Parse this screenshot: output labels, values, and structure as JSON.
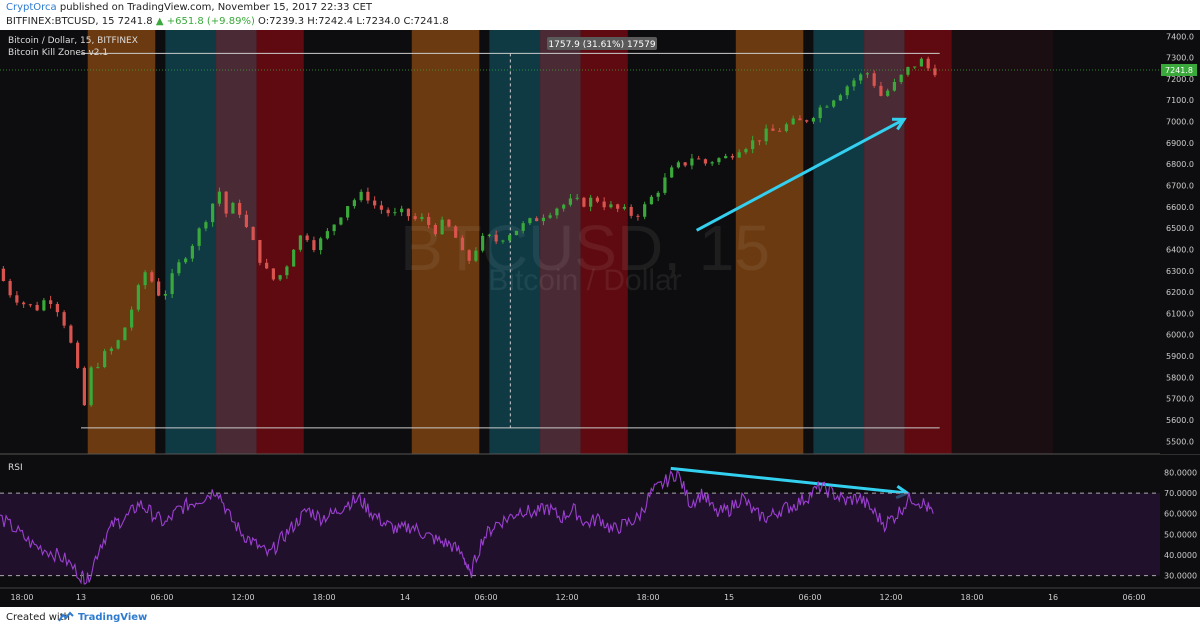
{
  "header": {
    "author": "CryptOrca",
    "published_text": "published on TradingView.com, November 15, 2017 22:33 CET",
    "symbol": "BITFINEX:BTCUSD, 15",
    "last": "7241.8",
    "change": "+651.8 (+9.89%)",
    "ohlc": "O:7239.3 H:7242.4 L:7234.0 C:7241.8"
  },
  "legend": {
    "title": "Bitcoin / Dollar, 15, BITFINEX",
    "indicator": "Bitcoin Kill Zones v2.1",
    "rsi_label": "RSI"
  },
  "watermark": {
    "line1": "BTCUSD, 15",
    "line2": "Bitcoin / Dollar"
  },
  "measure_label": "1757.9 (31.61%) 17579",
  "footer": {
    "created_with": "Created with",
    "brand": "TradingView"
  },
  "colors": {
    "background": "#0d0d0f",
    "up": "#3aa83a",
    "down": "#d9534f",
    "rsi": "#9b3fd0",
    "arrow": "#33d0f0",
    "price_tag": "#3aa83a",
    "zone_orange": "#6b3a10",
    "zone_teal": "#0f3a44",
    "zone_mauve": "#4a2a34",
    "zone_red": "#5e0a10"
  },
  "chart_data": [
    {
      "type": "candlestick",
      "title": "Bitcoin / Dollar, 15, BITFINEX",
      "xlabel": "",
      "ylabel": "",
      "x_tick_labels": [
        "18:00",
        "13",
        "06:00",
        "12:00",
        "18:00",
        "14",
        "06:00",
        "12:00",
        "18:00",
        "15",
        "06:00",
        "12:00",
        "18:00",
        "16",
        "06:00"
      ],
      "x_range_days": [
        -0.25,
        3.33
      ],
      "ylim": [
        5450,
        7420
      ],
      "y_ticks": [
        5500,
        5600,
        5700,
        5800,
        5900,
        6000,
        6100,
        6200,
        6300,
        6400,
        6500,
        6600,
        6700,
        6800,
        6900,
        7000,
        7100,
        7200,
        7300,
        7400
      ],
      "last_price": 7241.8,
      "grid": false,
      "zones": [
        {
          "start": 0.0208,
          "end": 0.2292,
          "kind": "orange"
        },
        {
          "start": 0.2604,
          "end": 0.4167,
          "kind": "teal"
        },
        {
          "start": 0.4167,
          "end": 0.5417,
          "kind": "mauve"
        },
        {
          "start": 0.5417,
          "end": 0.6875,
          "kind": "red"
        },
        {
          "start": 1.0208,
          "end": 1.2292,
          "kind": "orange"
        },
        {
          "start": 1.2604,
          "end": 1.4167,
          "kind": "teal"
        },
        {
          "start": 1.4167,
          "end": 1.5417,
          "kind": "mauve"
        },
        {
          "start": 1.5417,
          "end": 1.6875,
          "kind": "red"
        },
        {
          "start": 2.0208,
          "end": 2.2292,
          "kind": "orange"
        },
        {
          "start": 2.2604,
          "end": 2.4167,
          "kind": "teal"
        },
        {
          "start": 2.4167,
          "end": 2.5417,
          "kind": "mauve"
        },
        {
          "start": 2.5417,
          "end": 2.6875,
          "kind": "red"
        }
      ],
      "price_path": [
        [
          -0.25,
          6310
        ],
        [
          -0.21,
          6200
        ],
        [
          -0.17,
          6150
        ],
        [
          -0.13,
          6120
        ],
        [
          -0.09,
          6180
        ],
        [
          -0.05,
          6100
        ],
        [
          -0.01,
          5900
        ],
        [
          0.0,
          5820
        ],
        [
          0.01,
          5680
        ],
        [
          0.02,
          5660
        ],
        [
          0.04,
          5830
        ],
        [
          0.08,
          5900
        ],
        [
          0.12,
          5950
        ],
        [
          0.15,
          6050
        ],
        [
          0.18,
          6180
        ],
        [
          0.21,
          6300
        ],
        [
          0.23,
          6250
        ],
        [
          0.26,
          6170
        ],
        [
          0.29,
          6260
        ],
        [
          0.32,
          6350
        ],
        [
          0.35,
          6420
        ],
        [
          0.38,
          6500
        ],
        [
          0.41,
          6600
        ],
        [
          0.44,
          6680
        ],
        [
          0.46,
          6560
        ],
        [
          0.49,
          6620
        ],
        [
          0.52,
          6500
        ],
        [
          0.55,
          6400
        ],
        [
          0.58,
          6300
        ],
        [
          0.61,
          6250
        ],
        [
          0.64,
          6310
        ],
        [
          0.67,
          6430
        ],
        [
          0.7,
          6480
        ],
        [
          0.73,
          6420
        ],
        [
          0.76,
          6450
        ],
        [
          0.79,
          6520
        ],
        [
          0.83,
          6610
        ],
        [
          0.86,
          6640
        ],
        [
          0.89,
          6660
        ],
        [
          0.92,
          6600
        ],
        [
          0.95,
          6580
        ],
        [
          0.98,
          6560
        ],
        [
          1.01,
          6570
        ],
        [
          1.04,
          6540
        ],
        [
          1.07,
          6540
        ],
        [
          1.1,
          6490
        ],
        [
          1.13,
          6520
        ],
        [
          1.16,
          6480
        ],
        [
          1.18,
          6400
        ],
        [
          1.2,
          6330
        ],
        [
          1.23,
          6410
        ],
        [
          1.26,
          6460
        ],
        [
          1.29,
          6440
        ],
        [
          1.32,
          6470
        ],
        [
          1.36,
          6500
        ],
        [
          1.4,
          6530
        ],
        [
          1.44,
          6570
        ],
        [
          1.48,
          6600
        ],
        [
          1.52,
          6620
        ],
        [
          1.56,
          6620
        ],
        [
          1.6,
          6640
        ],
        [
          1.64,
          6600
        ],
        [
          1.68,
          6580
        ],
        [
          1.72,
          6560
        ],
        [
          1.75,
          6600
        ],
        [
          1.78,
          6660
        ],
        [
          1.81,
          6720
        ],
        [
          1.84,
          6780
        ],
        [
          1.87,
          6800
        ],
        [
          1.9,
          6840
        ],
        [
          1.93,
          6800
        ],
        [
          1.96,
          6820
        ],
        [
          2.0,
          6830
        ],
        [
          2.04,
          6880
        ],
        [
          2.08,
          6900
        ],
        [
          2.12,
          6940
        ],
        [
          2.16,
          6960
        ],
        [
          2.2,
          6990
        ],
        [
          2.24,
          7000
        ],
        [
          2.28,
          7050
        ],
        [
          2.32,
          7100
        ],
        [
          2.36,
          7150
        ],
        [
          2.4,
          7200
        ],
        [
          2.44,
          7230
        ],
        [
          2.48,
          7120
        ],
        [
          2.52,
          7170
        ],
        [
          2.56,
          7240
        ],
        [
          2.6,
          7290
        ],
        [
          2.63,
          7241.8
        ]
      ],
      "annotations": [
        {
          "type": "arrow",
          "from": [
            1.9,
            6490
          ],
          "to": [
            2.54,
            7010
          ]
        },
        {
          "type": "range",
          "from": 0.0,
          "to": 2.65,
          "low": 5563,
          "high": 7320,
          "label": "1757.9 (31.61%) 17579"
        }
      ]
    },
    {
      "type": "line",
      "title": "RSI",
      "ylim": [
        25,
        87
      ],
      "y_ticks": [
        30,
        40,
        50,
        60,
        70,
        80
      ],
      "y_tick_labels": [
        "30.0000",
        "40.0000",
        "50.0000",
        "60.0000",
        "70.0000",
        "80.0000"
      ],
      "bands": [
        30,
        70
      ],
      "series": [
        {
          "values": [
            [
              -0.25,
              58
            ],
            [
              -0.2,
              52
            ],
            [
              -0.15,
              45
            ],
            [
              -0.1,
              42
            ],
            [
              -0.05,
              38
            ],
            [
              0.0,
              30
            ],
            [
              0.02,
              28
            ],
            [
              0.06,
              45
            ],
            [
              0.1,
              55
            ],
            [
              0.14,
              58
            ],
            [
              0.18,
              65
            ],
            [
              0.22,
              60
            ],
            [
              0.26,
              55
            ],
            [
              0.3,
              62
            ],
            [
              0.34,
              65
            ],
            [
              0.38,
              68
            ],
            [
              0.42,
              72
            ],
            [
              0.46,
              58
            ],
            [
              0.5,
              50
            ],
            [
              0.54,
              45
            ],
            [
              0.58,
              40
            ],
            [
              0.62,
              48
            ],
            [
              0.66,
              55
            ],
            [
              0.7,
              62
            ],
            [
              0.74,
              58
            ],
            [
              0.78,
              60
            ],
            [
              0.82,
              65
            ],
            [
              0.86,
              67
            ],
            [
              0.9,
              60
            ],
            [
              0.94,
              55
            ],
            [
              0.98,
              52
            ],
            [
              1.02,
              54
            ],
            [
              1.06,
              50
            ],
            [
              1.1,
              47
            ],
            [
              1.14,
              45
            ],
            [
              1.18,
              40
            ],
            [
              1.2,
              30
            ],
            [
              1.24,
              48
            ],
            [
              1.28,
              55
            ],
            [
              1.32,
              58
            ],
            [
              1.36,
              62
            ],
            [
              1.4,
              60
            ],
            [
              1.44,
              63
            ],
            [
              1.48,
              58
            ],
            [
              1.52,
              62
            ],
            [
              1.56,
              55
            ],
            [
              1.6,
              58
            ],
            [
              1.64,
              52
            ],
            [
              1.68,
              55
            ],
            [
              1.72,
              58
            ],
            [
              1.76,
              70
            ],
            [
              1.8,
              75
            ],
            [
              1.84,
              80
            ],
            [
              1.88,
              65
            ],
            [
              1.92,
              70
            ],
            [
              1.96,
              60
            ],
            [
              2.0,
              62
            ],
            [
              2.04,
              68
            ],
            [
              2.08,
              60
            ],
            [
              2.12,
              58
            ],
            [
              2.16,
              62
            ],
            [
              2.2,
              64
            ],
            [
              2.24,
              68
            ],
            [
              2.28,
              73
            ],
            [
              2.32,
              70
            ],
            [
              2.36,
              66
            ],
            [
              2.4,
              68
            ],
            [
              2.44,
              62
            ],
            [
              2.48,
              55
            ],
            [
              2.52,
              60
            ],
            [
              2.56,
              68
            ],
            [
              2.6,
              65
            ],
            [
              2.63,
              60
            ]
          ]
        }
      ],
      "annotations": [
        {
          "type": "arrow",
          "from": [
            1.82,
            82
          ],
          "to": [
            2.55,
            70
          ]
        }
      ]
    }
  ]
}
